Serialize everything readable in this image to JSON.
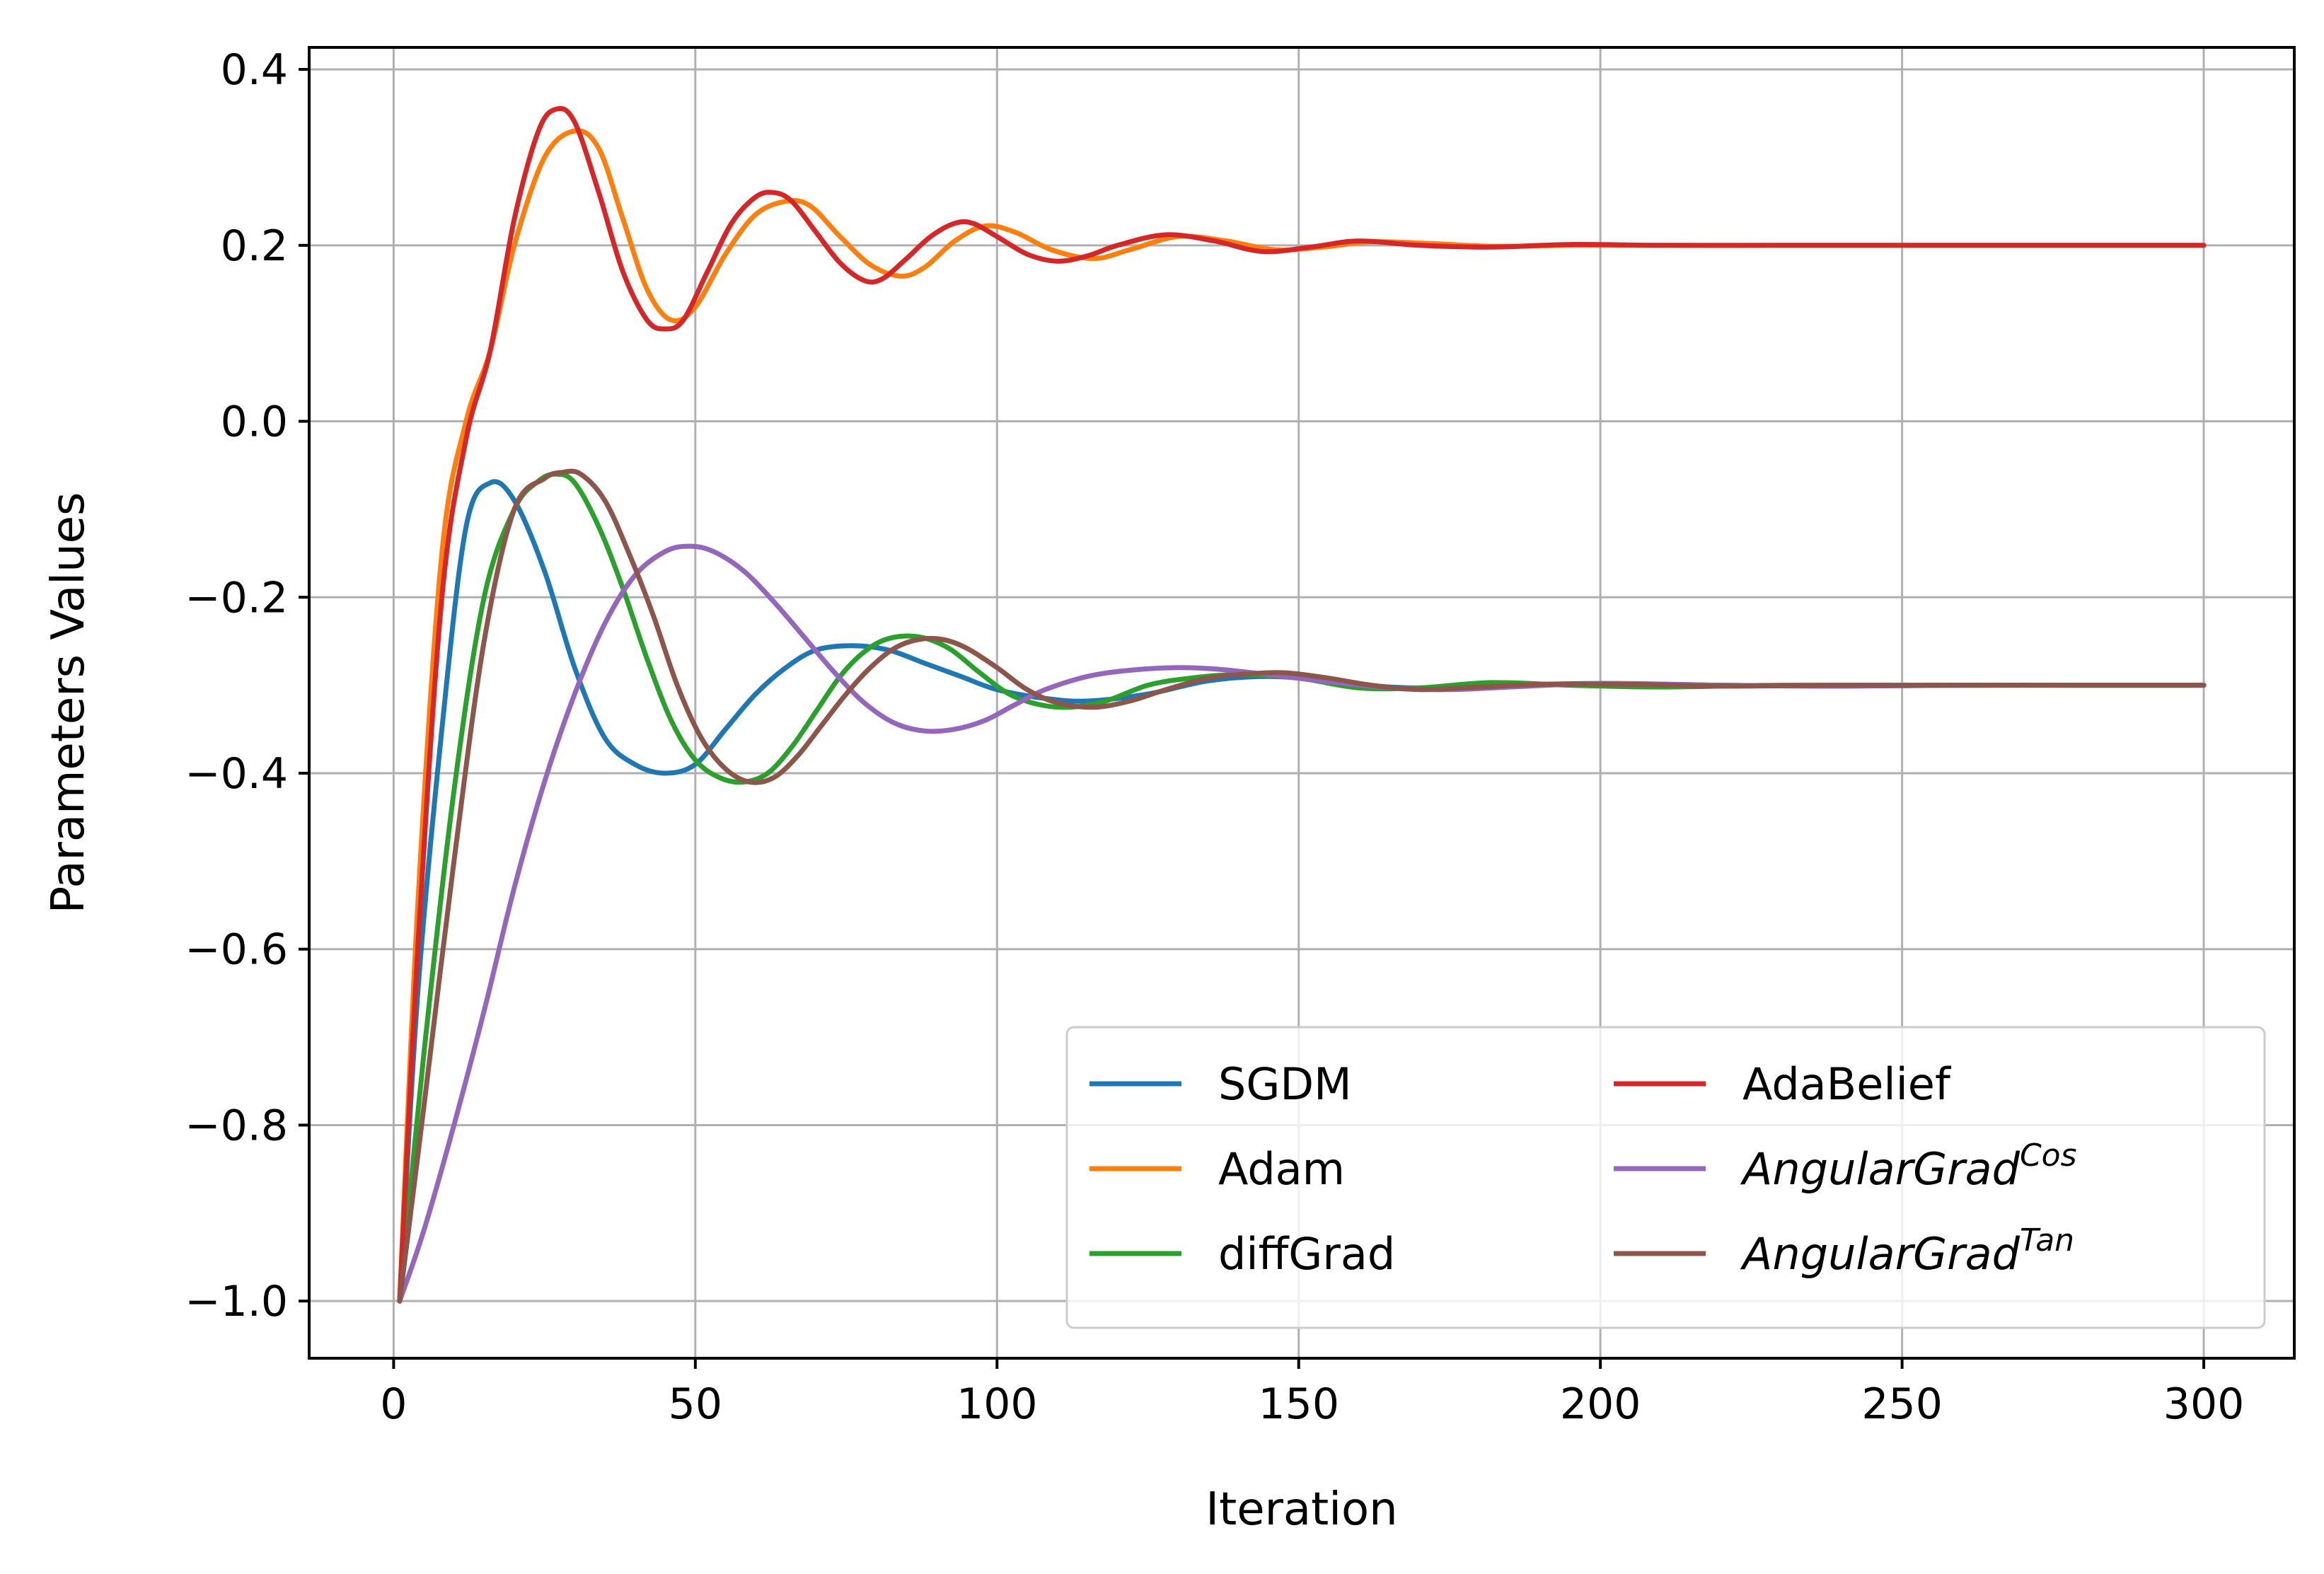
{
  "chart_data": {
    "type": "line",
    "title": "",
    "xlabel": "Iteration",
    "ylabel": "Parameters Values",
    "xlim": [
      -14,
      315
    ],
    "ylim": [
      -1.065,
      0.425
    ],
    "xticks": [
      0,
      50,
      100,
      150,
      200,
      250,
      300
    ],
    "yticks": [
      0.4,
      0.2,
      0.0,
      -0.2,
      -0.4,
      -0.6,
      -0.8,
      -1.0
    ],
    "xtick_labels": [
      "0",
      "50",
      "100",
      "150",
      "200",
      "250",
      "300"
    ],
    "ytick_labels": [
      "0.4",
      "0.2",
      "0.0",
      "−0.2",
      "−0.4",
      "−0.6",
      "−0.8",
      "−1.0"
    ],
    "grid": true,
    "legend": {
      "placement": "lower-right",
      "columns": 2
    },
    "series": [
      {
        "name": "SGDM",
        "name_main": "SGDM",
        "name_sup": "",
        "italic": false,
        "color": "#1f77b4",
        "x": [
          1,
          4,
          8,
          12,
          16,
          20,
          25,
          30,
          35,
          40,
          45,
          50,
          55,
          60,
          65,
          70,
          76,
          82,
          88,
          94,
          100,
          108,
          115,
          125,
          135,
          145,
          155,
          165,
          175,
          185,
          200,
          220,
          240,
          260,
          280,
          300
        ],
        "y": [
          -1.0,
          -0.65,
          -0.35,
          -0.12,
          -0.07,
          -0.09,
          -0.17,
          -0.28,
          -0.36,
          -0.39,
          -0.4,
          -0.39,
          -0.35,
          -0.31,
          -0.28,
          -0.26,
          -0.255,
          -0.26,
          -0.275,
          -0.29,
          -0.305,
          -0.315,
          -0.318,
          -0.31,
          -0.295,
          -0.29,
          -0.295,
          -0.302,
          -0.303,
          -0.3,
          -0.298,
          -0.3,
          -0.301,
          -0.3,
          -0.3,
          -0.3
        ]
      },
      {
        "name": "Adam",
        "name_main": "Adam",
        "name_sup": "",
        "italic": false,
        "color": "#ff7f0e",
        "x": [
          1,
          4,
          8,
          12,
          16,
          20,
          25,
          30,
          34,
          38,
          42,
          46,
          50,
          55,
          60,
          65,
          69,
          74,
          79,
          84,
          88,
          93,
          98,
          103,
          109,
          116,
          122,
          130,
          138,
          146,
          154,
          162,
          172,
          182,
          195,
          210,
          230,
          250,
          270,
          300
        ],
        "y": [
          -1.0,
          -0.55,
          -0.15,
          0.0,
          0.08,
          0.2,
          0.3,
          0.33,
          0.31,
          0.23,
          0.15,
          0.115,
          0.13,
          0.19,
          0.235,
          0.25,
          0.245,
          0.21,
          0.178,
          0.165,
          0.175,
          0.205,
          0.222,
          0.215,
          0.195,
          0.185,
          0.195,
          0.21,
          0.205,
          0.195,
          0.198,
          0.204,
          0.202,
          0.199,
          0.2,
          0.2,
          0.2,
          0.2,
          0.2,
          0.2
        ]
      },
      {
        "name": "diffGrad",
        "name_main": "diffGrad",
        "name_sup": "",
        "italic": false,
        "color": "#2ca02c",
        "x": [
          1,
          5,
          10,
          15,
          20,
          24,
          27,
          30,
          34,
          38,
          42,
          46,
          50,
          54,
          58,
          62,
          66,
          70,
          74,
          78,
          82,
          87,
          92,
          97,
          102,
          107,
          112,
          118,
          125,
          132,
          140,
          150,
          160,
          170,
          182,
          195,
          210,
          230,
          260,
          300
        ],
        "y": [
          -1.0,
          -0.72,
          -0.42,
          -0.2,
          -0.1,
          -0.068,
          -0.06,
          -0.07,
          -0.12,
          -0.19,
          -0.27,
          -0.34,
          -0.385,
          -0.405,
          -0.41,
          -0.4,
          -0.37,
          -0.33,
          -0.29,
          -0.262,
          -0.247,
          -0.245,
          -0.258,
          -0.285,
          -0.31,
          -0.322,
          -0.325,
          -0.318,
          -0.3,
          -0.292,
          -0.288,
          -0.292,
          -0.303,
          -0.303,
          -0.297,
          -0.3,
          -0.302,
          -0.3,
          -0.3,
          -0.3
        ]
      },
      {
        "name": "AdaBelief",
        "name_main": "AdaBelief",
        "name_sup": "",
        "italic": false,
        "color": "#d62728",
        "x": [
          1,
          4,
          8,
          12,
          16,
          20,
          24,
          27,
          30,
          34,
          38,
          42,
          45,
          48,
          52,
          56,
          60,
          63,
          66,
          70,
          74,
          78,
          81,
          85,
          89,
          93,
          96,
          100,
          105,
          110,
          115,
          120,
          128,
          136,
          144,
          152,
          160,
          170,
          182,
          195,
          210,
          230,
          250,
          270,
          300
        ],
        "y": [
          -1.0,
          -0.6,
          -0.2,
          -0.02,
          0.08,
          0.23,
          0.33,
          0.355,
          0.34,
          0.26,
          0.17,
          0.115,
          0.105,
          0.115,
          0.17,
          0.225,
          0.255,
          0.26,
          0.25,
          0.215,
          0.18,
          0.16,
          0.162,
          0.185,
          0.21,
          0.225,
          0.225,
          0.21,
          0.19,
          0.182,
          0.188,
          0.2,
          0.212,
          0.205,
          0.193,
          0.198,
          0.205,
          0.2,
          0.198,
          0.201,
          0.2,
          0.2,
          0.2,
          0.2,
          0.2
        ]
      },
      {
        "name": "AngularGrad^Cos",
        "name_main": "AngularGrad",
        "name_sup": "Cos",
        "italic": true,
        "color": "#9467bd",
        "x": [
          1,
          5,
          10,
          15,
          20,
          25,
          30,
          35,
          40,
          45,
          49,
          53,
          58,
          63,
          68,
          73,
          78,
          83,
          88,
          93,
          98,
          103,
          108,
          115,
          122,
          130,
          137,
          145,
          155,
          165,
          175,
          185,
          200,
          220,
          240,
          260,
          280,
          300
        ],
        "y": [
          -1.0,
          -0.92,
          -0.8,
          -0.67,
          -0.53,
          -0.41,
          -0.31,
          -0.23,
          -0.175,
          -0.148,
          -0.142,
          -0.148,
          -0.17,
          -0.205,
          -0.245,
          -0.285,
          -0.32,
          -0.343,
          -0.352,
          -0.35,
          -0.34,
          -0.322,
          -0.305,
          -0.29,
          -0.283,
          -0.28,
          -0.282,
          -0.288,
          -0.296,
          -0.303,
          -0.305,
          -0.302,
          -0.298,
          -0.3,
          -0.301,
          -0.3,
          -0.3,
          -0.3
        ]
      },
      {
        "name": "AngularGrad^Tan",
        "name_main": "AngularGrad",
        "name_sup": "Tan",
        "italic": true,
        "color": "#8c564b",
        "x": [
          1,
          5,
          10,
          15,
          20,
          25,
          28,
          31,
          35,
          39,
          43,
          47,
          51,
          55,
          59,
          63,
          67,
          71,
          75,
          79,
          83,
          87,
          91,
          95,
          100,
          105,
          110,
          116,
          122,
          128,
          135,
          142,
          148,
          155,
          162,
          170,
          180,
          190,
          205,
          220,
          240,
          260,
          280,
          300
        ],
        "y": [
          -1.0,
          -0.78,
          -0.5,
          -0.25,
          -0.1,
          -0.065,
          -0.058,
          -0.06,
          -0.09,
          -0.15,
          -0.22,
          -0.3,
          -0.36,
          -0.395,
          -0.41,
          -0.405,
          -0.38,
          -0.345,
          -0.31,
          -0.28,
          -0.258,
          -0.248,
          -0.248,
          -0.258,
          -0.28,
          -0.305,
          -0.32,
          -0.325,
          -0.318,
          -0.305,
          -0.292,
          -0.287,
          -0.286,
          -0.292,
          -0.3,
          -0.305,
          -0.302,
          -0.299,
          -0.299,
          -0.301,
          -0.3,
          -0.3,
          -0.3,
          -0.3
        ]
      }
    ]
  }
}
